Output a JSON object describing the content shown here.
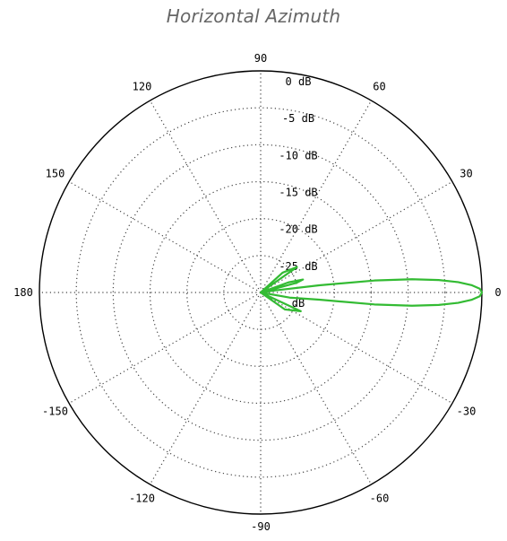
{
  "chart_data": {
    "type": "polar",
    "title": "Horizontal Azimuth",
    "angle_unit": "degrees",
    "angle_ticks": [
      "0",
      "30",
      "60",
      "90",
      "120",
      "150",
      "180",
      "-150",
      "-120",
      "-90",
      "-60",
      "-30"
    ],
    "angle_tick_values": [
      0,
      30,
      60,
      90,
      120,
      150,
      180,
      -150,
      -120,
      -90,
      -60,
      -30
    ],
    "radial_ticks": [
      "0 dB",
      "-5 dB",
      "-10 dB",
      "-15 dB",
      "-20 dB",
      "-25 dB",
      "dB"
    ],
    "radial_values": [
      0,
      -5,
      -10,
      -15,
      -20,
      -25,
      -30
    ],
    "radial_range": [
      -30,
      0
    ],
    "grid": true,
    "series": [
      {
        "color": "#33bb33",
        "points": [
          [
            0,
            0
          ],
          [
            1,
            -0.3
          ],
          [
            2,
            -1.4
          ],
          [
            3,
            -3.2
          ],
          [
            4,
            -5.8
          ],
          [
            5,
            -9.4
          ],
          [
            6,
            -14.5
          ],
          [
            7,
            -22
          ],
          [
            8,
            -28
          ],
          [
            12,
            -30
          ],
          [
            15,
            -25
          ],
          [
            17,
            -24
          ],
          [
            20,
            -26
          ],
          [
            25,
            -30
          ],
          [
            35,
            -24
          ],
          [
            42,
            -26
          ],
          [
            50,
            -30
          ],
          [
            310,
            -30
          ],
          [
            325,
            -26
          ],
          [
            335,
            -24
          ],
          [
            345,
            -30
          ],
          [
            350,
            -26
          ],
          [
            352,
            -24
          ],
          [
            353,
            -22
          ],
          [
            354,
            -14.5
          ],
          [
            355,
            -9.4
          ],
          [
            356,
            -5.8
          ],
          [
            357,
            -3.2
          ],
          [
            358,
            -1.4
          ],
          [
            359,
            -0.3
          ],
          [
            360,
            0
          ]
        ]
      }
    ]
  },
  "colors": {
    "circle": "#000000",
    "grid": "#444444",
    "pattern": "#33bb33",
    "title": "#666666"
  }
}
